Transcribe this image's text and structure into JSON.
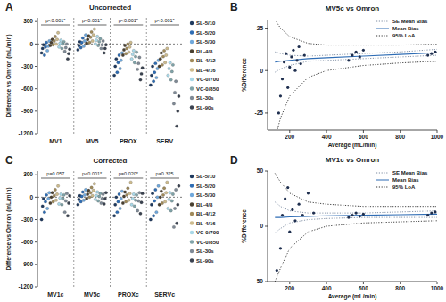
{
  "chart_data": [
    {
      "type": "strip",
      "panel_label": "A",
      "title": "Uncorrected",
      "y_label": "Difference vs Omron (mL/min)",
      "categories": [
        "MV1",
        "MV5",
        "PROX",
        "SERV"
      ],
      "p_values": [
        "p<0.001*",
        "p<0.001*",
        "p<0.001*",
        "p<0.001*"
      ],
      "ylim": [
        -1200,
        350
      ],
      "yticks": [
        -1200,
        -900,
        -600,
        -300,
        0,
        300
      ],
      "reference_y": 0,
      "grid": false,
      "legend": "right",
      "series": [
        {
          "name": "SL-5/10",
          "color": "#1f3a5f",
          "values": [
            [
              -120,
              -60,
              -10
            ],
            [
              -80,
              -20,
              30
            ],
            [
              -420,
              -300,
              -200
            ],
            [
              -550,
              -420,
              -300
            ]
          ]
        },
        {
          "name": "SL-5/20",
          "color": "#2e6db4",
          "values": [
            [
              -150,
              -40,
              20
            ],
            [
              -50,
              20,
              80
            ],
            [
              -380,
              -250,
              -150
            ],
            [
              -500,
              -380,
              -260
            ]
          ]
        },
        {
          "name": "SL-5/30",
          "color": "#6fa8dc",
          "values": [
            [
              -90,
              -30,
              40
            ],
            [
              -30,
              40,
              120
            ],
            [
              -330,
              -220,
              -120
            ],
            [
              -450,
              -330,
              -220
            ]
          ]
        },
        {
          "name": "BL-4/8",
          "color": "#4a4030",
          "values": [
            [
              -20,
              20,
              60
            ],
            [
              10,
              60,
              110
            ],
            [
              -150,
              -80,
              -20
            ],
            [
              -300,
              -200,
              -120
            ]
          ]
        },
        {
          "name": "BL-4/12",
          "color": "#a08a5a",
          "values": [
            [
              -10,
              40,
              100
            ],
            [
              20,
              90,
              160
            ],
            [
              -130,
              -60,
              0
            ],
            [
              -280,
              -170,
              -90
            ]
          ]
        },
        {
          "name": "BL-4/16",
          "color": "#cdbb8d",
          "values": [
            [
              0,
              60,
              150
            ],
            [
              40,
              120,
              200
            ],
            [
              -110,
              -40,
              20
            ],
            [
              -250,
              -150,
              -60
            ]
          ]
        },
        {
          "name": "VC-0/700",
          "color": "#a8d8e8",
          "values": [
            [
              -40,
              10,
              50
            ],
            [
              0,
              50,
              100
            ],
            [
              -200,
              -140,
              -90
            ],
            [
              -420,
              -330,
              -250
            ]
          ]
        },
        {
          "name": "VC-0/850",
          "color": "#7fa3a8",
          "values": [
            [
              -60,
              0,
              30
            ],
            [
              -20,
              30,
              70
            ],
            [
              -250,
              -170,
              -110
            ],
            [
              -480,
              -370,
              -280
            ]
          ]
        },
        {
          "name": "SL-30s",
          "color": "#7f8a96",
          "values": [
            [
              -100,
              -50,
              0
            ],
            [
              -60,
              -10,
              40
            ],
            [
              -340,
              -260,
              -180
            ],
            [
              -800,
              -650,
              -500
            ]
          ]
        },
        {
          "name": "SL-90s",
          "color": "#3a4250",
          "values": [
            [
              -200,
              -130,
              -70
            ],
            [
              -120,
              -60,
              -10
            ],
            [
              -480,
              -400,
              -320
            ],
            [
              -1100,
              -900,
              -700
            ]
          ]
        }
      ]
    },
    {
      "type": "scatter",
      "panel_label": "B",
      "title": "MV5c vs Omron",
      "x_label": "Average (mL/min)",
      "y_label": "%Difference",
      "xlim": [
        80,
        1000
      ],
      "xticks": [
        200,
        400,
        600,
        800,
        1000
      ],
      "ylim": [
        -35,
        30
      ],
      "yticks": [
        -25,
        0,
        25
      ],
      "legend": "upper right",
      "points": {
        "color": "#1f2f4f",
        "x": [
          140,
          150,
          160,
          170,
          180,
          190,
          200,
          210,
          220,
          230,
          240,
          250,
          260,
          280,
          520,
          540,
          560,
          580,
          600,
          950,
          970,
          990
        ],
        "y": [
          -25,
          -15,
          -5,
          5,
          10,
          -10,
          2,
          8,
          12,
          0,
          6,
          14,
          4,
          9,
          6,
          9,
          11,
          8,
          12,
          9,
          10,
          11
        ]
      },
      "lines": {
        "x": [
          120,
          150,
          200,
          300,
          400,
          600,
          800,
          1000
        ],
        "series": [
          {
            "name": "SE Mean Bias",
            "color": "#7a8aa0",
            "line_style": "dotted",
            "values": [
              11,
              10,
              9,
              8.5,
              9,
              10,
              11,
              12.5
            ],
            "lower": [
              -1,
              1,
              3,
              5.5,
              6,
              7,
              8,
              9
            ]
          },
          {
            "name": "Mean Bias",
            "color": "#2f6db5",
            "line_style": "solid",
            "values": [
              5,
              5.5,
              6,
              7,
              7.5,
              8.5,
              9.5,
              10.5
            ]
          },
          {
            "name": "95% LoA",
            "color": "#303030",
            "line_style": "dotted",
            "values": [
              30,
              25,
              20,
              16,
              15,
              15,
              15,
              15.5
            ],
            "lower": [
              -40,
              -28,
              -15,
              -4,
              0,
              3,
              4.5,
              5.5
            ]
          }
        ]
      }
    },
    {
      "type": "strip",
      "panel_label": "C",
      "title": "Corrected",
      "y_label": "Difference vs Omron (mL/min)",
      "categories": [
        "MV1c",
        "MV5c",
        "PROXc",
        "SERVc"
      ],
      "p_values": [
        "p=0.057",
        "p<0.001*",
        "p=0.020*",
        "p=0.325"
      ],
      "ylim": [
        -1200,
        350
      ],
      "yticks": [
        -1200,
        -900,
        -600,
        -300,
        0,
        300
      ],
      "reference_y": 0,
      "grid": false,
      "legend": "right",
      "series": [
        {
          "name": "SL-5/10",
          "color": "#1f3a5f",
          "values": [
            [
              -300,
              -120,
              -20
            ],
            [
              -100,
              -30,
              20
            ],
            [
              -250,
              -100,
              0
            ],
            [
              -300,
              -100,
              50
            ]
          ]
        },
        {
          "name": "SL-5/20",
          "color": "#2e6db4",
          "values": [
            [
              -200,
              -60,
              30
            ],
            [
              -60,
              10,
              70
            ],
            [
              -200,
              -60,
              40
            ],
            [
              -250,
              -50,
              100
            ]
          ]
        },
        {
          "name": "SL-5/30",
          "color": "#6fa8dc",
          "values": [
            [
              -150,
              -20,
              60
            ],
            [
              -40,
              30,
              100
            ],
            [
              -150,
              -20,
              80
            ],
            [
              -200,
              0,
              150
            ]
          ]
        },
        {
          "name": "BL-4/8",
          "color": "#4a4030",
          "values": [
            [
              -80,
              0,
              60
            ],
            [
              -20,
              40,
              90
            ],
            [
              -80,
              10,
              70
            ],
            [
              -100,
              0,
              80
            ]
          ]
        },
        {
          "name": "BL-4/12",
          "color": "#a08a5a",
          "values": [
            [
              -60,
              20,
              100
            ],
            [
              0,
              60,
              130
            ],
            [
              -60,
              30,
              120
            ],
            [
              -80,
              30,
              120
            ]
          ]
        },
        {
          "name": "BL-4/16",
          "color": "#cdbb8d",
          "values": [
            [
              -40,
              40,
              150
            ],
            [
              20,
              90,
              180
            ],
            [
              -40,
              50,
              200
            ],
            [
              -60,
              60,
              200
            ]
          ]
        },
        {
          "name": "VC-0/700",
          "color": "#a8d8e8",
          "values": [
            [
              -90,
              -10,
              40
            ],
            [
              -30,
              20,
              70
            ],
            [
              -100,
              -20,
              40
            ],
            [
              -150,
              -30,
              60
            ]
          ]
        },
        {
          "name": "VC-0/850",
          "color": "#7fa3a8",
          "values": [
            [
              -100,
              -20,
              30
            ],
            [
              -50,
              10,
              50
            ],
            [
              -120,
              -40,
              30
            ],
            [
              -180,
              -50,
              40
            ]
          ]
        },
        {
          "name": "SL-30s",
          "color": "#7f8a96",
          "values": [
            [
              -200,
              -50,
              50
            ],
            [
              -80,
              -20,
              40
            ],
            [
              -180,
              -50,
              60
            ],
            [
              -400,
              -150,
              100
            ]
          ]
        },
        {
          "name": "SL-90s",
          "color": "#3a4250",
          "values": [
            [
              -250,
              -80,
              20
            ],
            [
              -90,
              -20,
              60
            ],
            [
              -220,
              -70,
              50
            ],
            [
              -350,
              -100,
              150
            ]
          ]
        }
      ]
    },
    {
      "type": "scatter",
      "panel_label": "D",
      "title": "MV1c vs Omron",
      "x_label": "Average (mL/min)",
      "y_label": "%Difference",
      "xlim": [
        80,
        1000
      ],
      "xticks": [
        200,
        400,
        600,
        800,
        1000
      ],
      "ylim": [
        -50,
        50
      ],
      "yticks": [
        -50,
        0,
        50
      ],
      "legend": "upper right",
      "points": {
        "color": "#1f2f4f",
        "x": [
          130,
          150,
          160,
          175,
          190,
          200,
          215,
          230,
          250,
          270,
          300,
          330,
          520,
          540,
          560,
          580,
          600,
          950,
          970,
          990
        ],
        "y": [
          -40,
          -20,
          10,
          25,
          35,
          -5,
          15,
          5,
          20,
          10,
          30,
          12,
          8,
          10,
          12,
          9,
          11,
          10,
          12,
          13
        ]
      },
      "lines": {
        "x": [
          120,
          150,
          200,
          300,
          400,
          600,
          800,
          1000
        ],
        "series": [
          {
            "name": "SE Mean Bias",
            "color": "#7a8aa0",
            "line_style": "dotted",
            "values": [
              22,
              18,
              14,
              12,
              12,
              12,
              13,
              14
            ],
            "lower": [
              -6,
              -2,
              3,
              6,
              7,
              8,
              8,
              8
            ]
          },
          {
            "name": "Mean Bias",
            "color": "#2f6db5",
            "line_style": "solid",
            "values": [
              8,
              8,
              8.5,
              9,
              9.5,
              10,
              10.5,
              11
            ]
          },
          {
            "name": "95% LoA",
            "color": "#303030",
            "line_style": "dotted",
            "values": [
              48,
              40,
              30,
              22,
              20,
              18,
              18,
              18
            ],
            "lower": [
              -50,
              -38,
              -20,
              -5,
              0,
              3,
              4,
              5
            ]
          }
        ]
      }
    }
  ]
}
